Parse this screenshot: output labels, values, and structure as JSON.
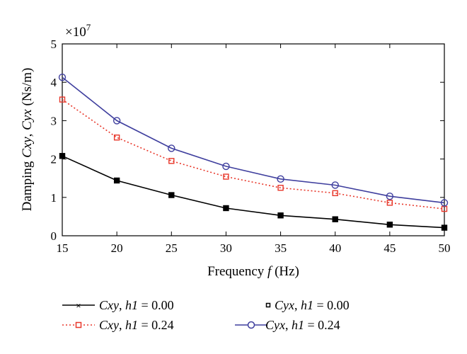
{
  "chart_data": {
    "type": "line",
    "multiplier": "×10",
    "multiplier_exp": "7",
    "xlabel": {
      "prefix": "Frequency ",
      "var": "f",
      "suffix": " (Hz)"
    },
    "ylabel": {
      "prefix": "Damping ",
      "var1": "Cxy",
      "sep": ", ",
      "var2": "Cyx",
      "suffix": " (Ns/m)"
    },
    "xlim": [
      15,
      50
    ],
    "ylim": [
      0,
      5
    ],
    "xticks": [
      "15",
      "20",
      "25",
      "30",
      "35",
      "40",
      "45",
      "50"
    ],
    "yticks": [
      "0",
      "1",
      "2",
      "3",
      "4",
      "5"
    ],
    "x": [
      15,
      20,
      25,
      30,
      35,
      40,
      45,
      50
    ],
    "grid": false,
    "legend_position": "bottom",
    "series": [
      {
        "name": "Cxy, h1 = 0.00",
        "name_var": "Cxy",
        "name_param": "h1",
        "name_value": " = 0.00",
        "values": [
          2.08,
          1.44,
          1.06,
          0.72,
          0.53,
          0.43,
          0.29,
          0.21
        ],
        "color": "#000000",
        "line": "solid",
        "marker": "filled-square"
      },
      {
        "name": "Cyx, h1 = 0.00",
        "name_var": "Cyx",
        "name_param": "h1",
        "name_value": " = 0.00",
        "values": [
          2.08,
          1.44,
          1.06,
          0.72,
          0.53,
          0.43,
          0.29,
          0.21
        ],
        "color": "#000000",
        "line": "none",
        "marker": "open-square"
      },
      {
        "name": "Cxy, h1 = 0.24",
        "name_var": "Cxy",
        "name_param": "h1",
        "name_value": " = 0.24",
        "values": [
          3.55,
          2.56,
          1.95,
          1.54,
          1.25,
          1.11,
          0.86,
          0.7
        ],
        "color": "#e8372a",
        "line": "dotted",
        "marker": "open-square"
      },
      {
        "name": "Cyx, h1 = 0.24",
        "name_var": "Cyx",
        "name_param": "h1",
        "name_value": " = 0.24",
        "values": [
          4.13,
          3.0,
          2.28,
          1.81,
          1.48,
          1.32,
          1.03,
          0.86
        ],
        "color": "#3f3f9e",
        "line": "solid",
        "marker": "open-circle"
      }
    ]
  }
}
